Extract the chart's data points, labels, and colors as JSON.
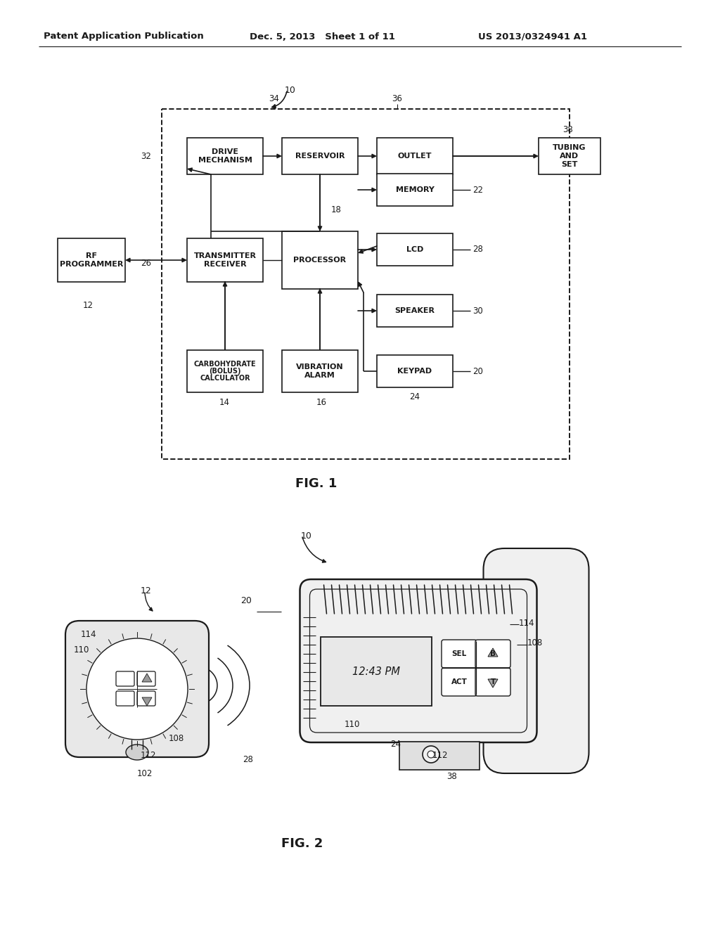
{
  "header_left": "Patent Application Publication",
  "header_mid": "Dec. 5, 2013   Sheet 1 of 11",
  "header_right": "US 2013/0324941 A1",
  "fig1_label": "FIG. 1",
  "fig2_label": "FIG. 2",
  "background": "#ffffff",
  "lc": "#1a1a1a"
}
